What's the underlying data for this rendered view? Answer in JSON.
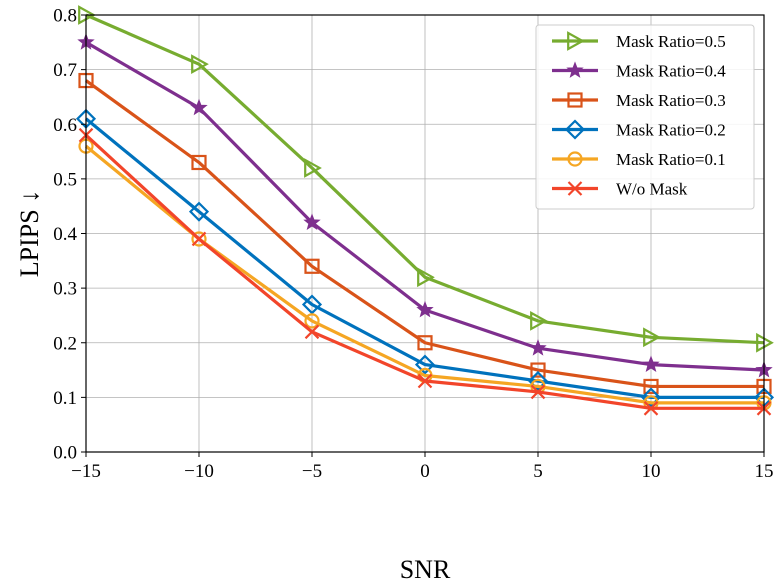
{
  "chart_data": {
    "type": "line",
    "title": "",
    "xlabel": "SNR",
    "ylabel": "LPIPS ↓",
    "x": [
      -15,
      -10,
      -5,
      0,
      5,
      10,
      15
    ],
    "xlim": [
      -15,
      15
    ],
    "ylim": [
      0.0,
      0.8
    ],
    "xticks": [
      -15,
      -10,
      -5,
      0,
      5,
      10,
      15
    ],
    "xtick_labels": [
      "−15",
      "−10",
      "−5",
      "0",
      "5",
      "10",
      "15"
    ],
    "yticks": [
      0.0,
      0.1,
      0.2,
      0.3,
      0.4,
      0.5,
      0.6,
      0.7,
      0.8
    ],
    "ytick_labels": [
      "0.0",
      "0.1",
      "0.2",
      "0.3",
      "0.4",
      "0.5",
      "0.6",
      "0.7",
      "0.8"
    ],
    "grid": true,
    "legend_position": "top-right",
    "series": [
      {
        "name": "Mask Ratio=0.5",
        "color": "#77ac30",
        "marker": "triangle-right",
        "values": [
          0.8,
          0.71,
          0.52,
          0.32,
          0.24,
          0.21,
          0.2
        ]
      },
      {
        "name": "Mask Ratio=0.4",
        "color": "#7e2f8e",
        "marker": "star",
        "values": [
          0.75,
          0.63,
          0.42,
          0.26,
          0.19,
          0.16,
          0.15
        ]
      },
      {
        "name": "Mask Ratio=0.3",
        "color": "#d95319",
        "marker": "square",
        "values": [
          0.68,
          0.53,
          0.34,
          0.2,
          0.15,
          0.12,
          0.12
        ]
      },
      {
        "name": "Mask Ratio=0.2",
        "color": "#0072bd",
        "marker": "diamond",
        "values": [
          0.61,
          0.44,
          0.27,
          0.16,
          0.13,
          0.1,
          0.1
        ]
      },
      {
        "name": "Mask Ratio=0.1",
        "color": "#f5a623",
        "marker": "circle",
        "values": [
          0.56,
          0.39,
          0.24,
          0.14,
          0.12,
          0.09,
          0.09
        ]
      },
      {
        "name": "W/o Mask",
        "color": "#f2452a",
        "marker": "x",
        "values": [
          0.58,
          0.39,
          0.22,
          0.13,
          0.11,
          0.08,
          0.08
        ]
      }
    ]
  }
}
